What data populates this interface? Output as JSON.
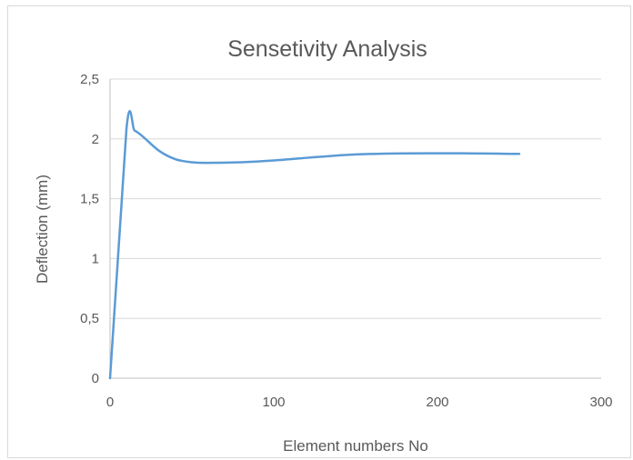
{
  "chart_data": {
    "type": "line",
    "title": "Sensetivity Analysis",
    "xlabel": "Element numbers No",
    "ylabel": "Deflection (mm)",
    "xlim": [
      0,
      300
    ],
    "ylim": [
      0,
      2.5
    ],
    "x_ticks": [
      "0",
      "100",
      "200",
      "300"
    ],
    "y_ticks": [
      "0",
      "0,5",
      "1",
      "1,5",
      "2",
      "2,5"
    ],
    "grid": true,
    "legend": "none",
    "series": [
      {
        "color": "#5b9bd5",
        "x": [
          0,
          10,
          15,
          20,
          30,
          40,
          50,
          60,
          80,
          100,
          150,
          200,
          250
        ],
        "y": [
          0,
          2.08,
          2.07,
          2.02,
          1.9,
          1.83,
          1.805,
          1.8,
          1.805,
          1.82,
          1.87,
          1.88,
          1.875
        ]
      }
    ]
  }
}
